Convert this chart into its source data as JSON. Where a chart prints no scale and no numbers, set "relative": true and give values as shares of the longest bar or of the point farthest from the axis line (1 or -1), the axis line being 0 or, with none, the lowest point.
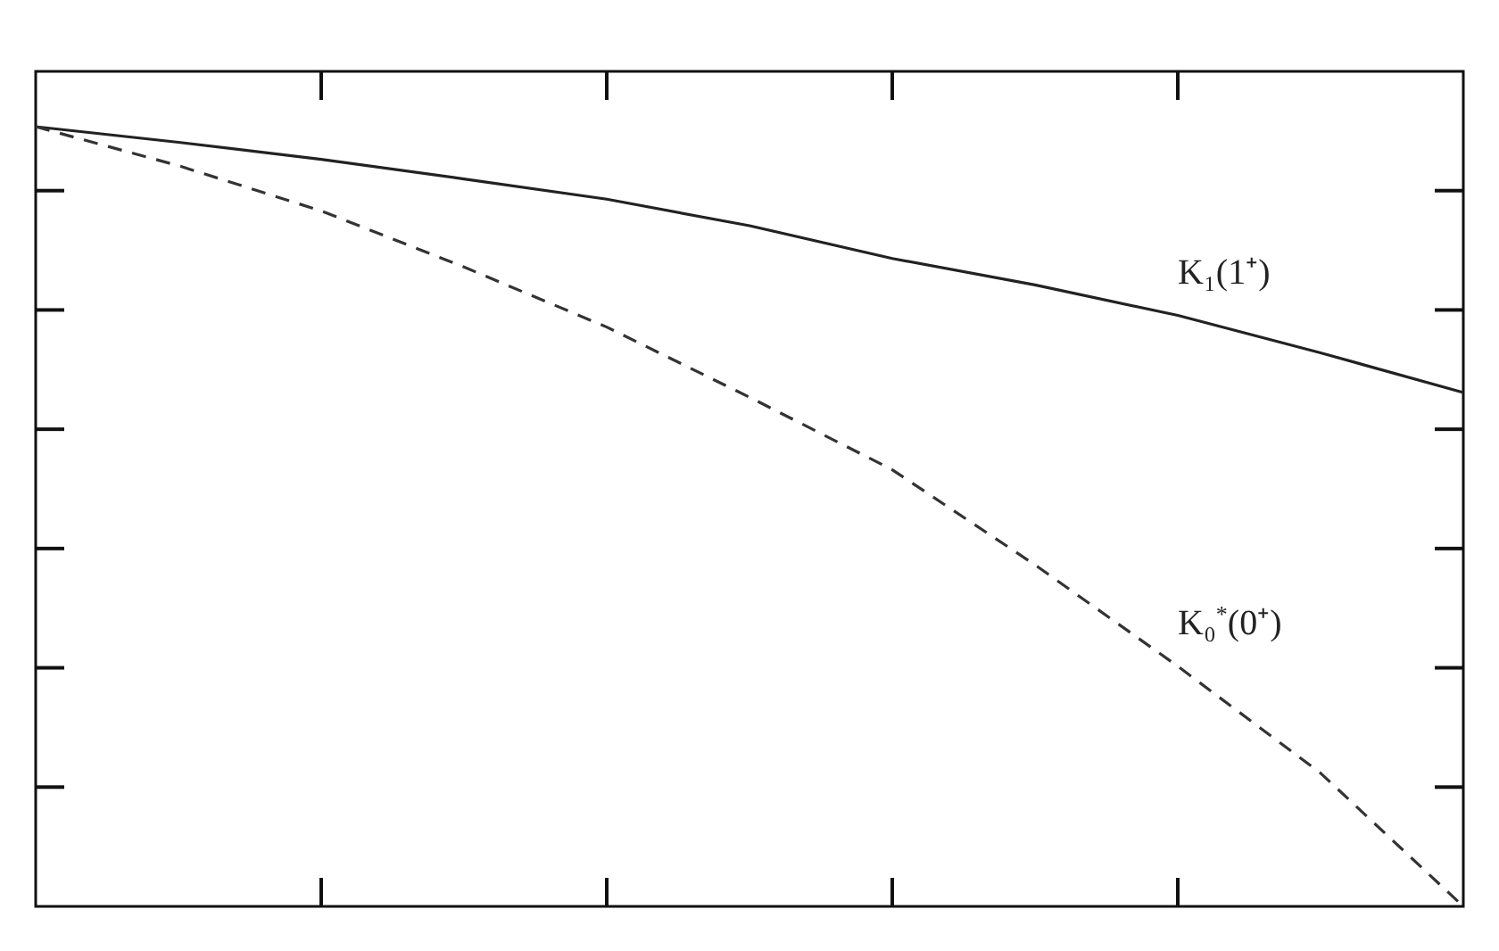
{
  "chart_data": {
    "type": "line",
    "relative": true,
    "categories": [
      null,
      null,
      null,
      null,
      null,
      null,
      null,
      null,
      null,
      null,
      null
    ],
    "series": [
      {
        "name": "K₁(1⁺)",
        "color": "#222222",
        "line_style": "solid",
        "values": [
          1,
          0.98,
          0.958,
          0.933,
          0.907,
          0.873,
          0.831,
          0.797,
          0.758,
          0.71,
          0.659
        ]
      },
      {
        "name": "K₀$^{*}$(0⁺)",
        "color": "#333333",
        "line_style": "dashed",
        "values": [
          1,
          0.95,
          0.892,
          0.82,
          0.743,
          0.653,
          0.56,
          0.438,
          0.308,
          0.171,
          0
        ]
      }
    ]
  }
}
